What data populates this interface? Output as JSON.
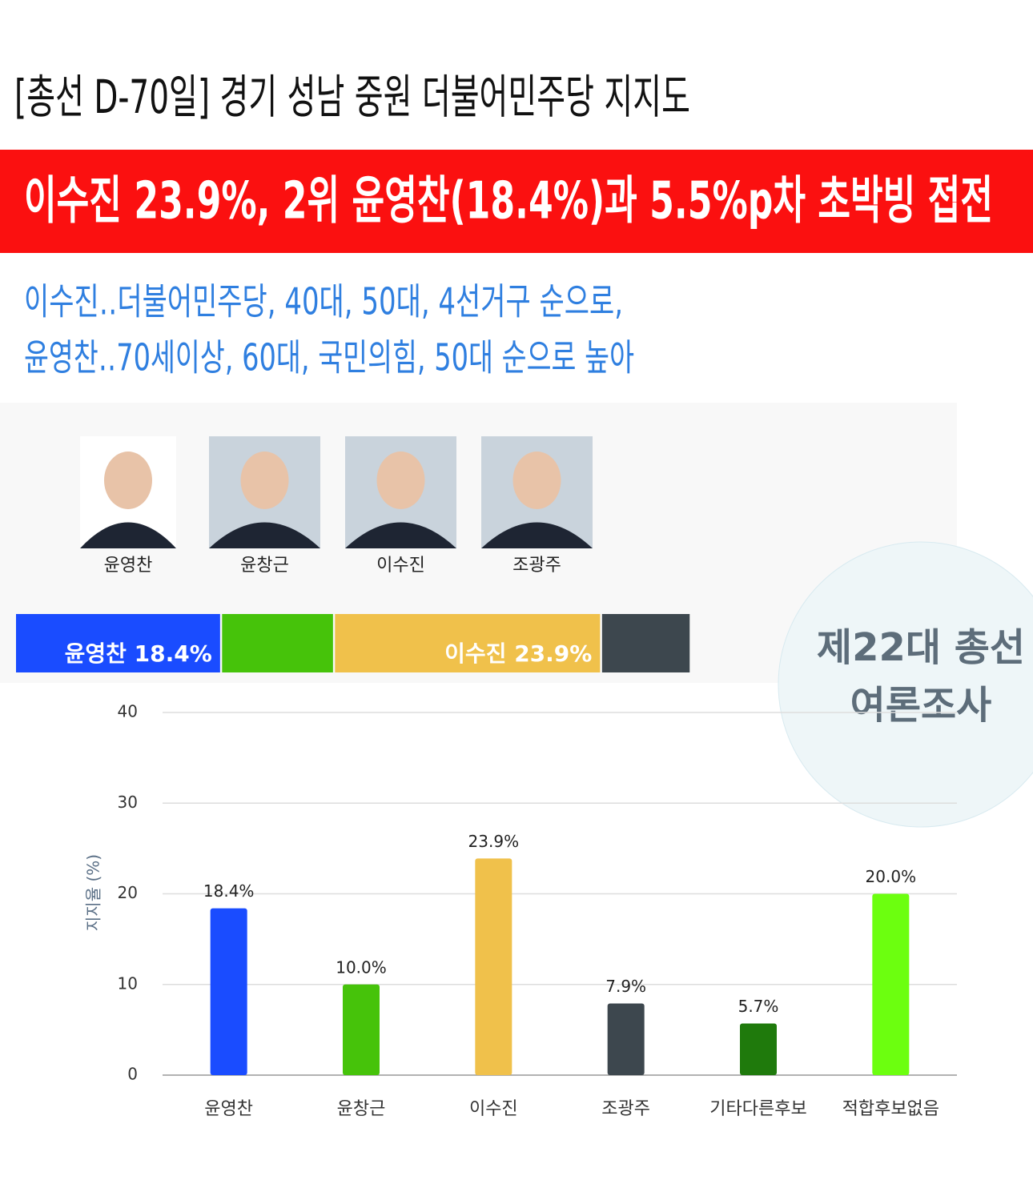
{
  "header": {
    "title": "[총선 D-70일] 경기 성남 중원 더불어민주당 지지도",
    "headline": "이수진 23.9%, 2위 윤영찬(18.4%)과 5.5%p차 초박빙 접전",
    "subtitle": [
      "이수진‥더불어민주당, 40대, 50대, 4선거구 순으로,",
      "윤영찬‥70세이상, 60대, 국민의힘, 50대 순으로 높아"
    ]
  },
  "candidates": [
    "윤영찬",
    "윤창근",
    "이수진",
    "조광주"
  ],
  "summary_bar": {
    "labels": [
      "윤영찬 18.4%",
      null,
      "이수진 23.9%",
      null
    ]
  },
  "badge": [
    "제22대 총선",
    "여론조사"
  ],
  "chart_data": {
    "type": "bar",
    "y_label": "지지율 (%)",
    "categories": [
      "윤영찬",
      "윤창근",
      "이수진",
      "조광주",
      "기타다른후보",
      "적합후보없음"
    ],
    "values": [
      18.4,
      10.0,
      23.9,
      7.9,
      5.7,
      20.0
    ],
    "value_labels": [
      "18.4%",
      "10.0%",
      "23.9%",
      "7.9%",
      "5.7%",
      "20.0%"
    ],
    "colors": [
      "#1a4cff",
      "#46c30a",
      "#f0c14b",
      "#3d474e",
      "#1f7a0c",
      "#6cff0f"
    ],
    "ylim": [
      0,
      40
    ],
    "yticks": [
      0,
      10,
      20,
      30,
      40
    ],
    "grid": true
  }
}
